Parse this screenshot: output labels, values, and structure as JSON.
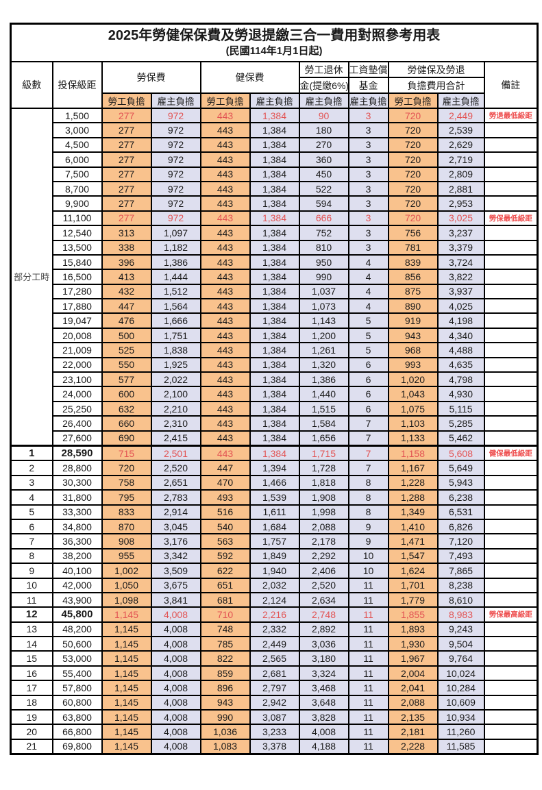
{
  "title": "2025年勞健保保費及勞退提繳三合一費用對照參考用表",
  "subtitle": "(民國114年1月1日起)",
  "header": {
    "level": "級數",
    "bracket": "投保級距",
    "labor_insurance": "勞保費",
    "health_insurance": "健保費",
    "pension_line1": "勞工退休",
    "pension_line2": "金(提繳6%)",
    "wage_fund_line1": "工資墊償",
    "wage_fund_line2": "基金",
    "total_line1": "勞健保及勞退",
    "total_line2": "負擔費用合計",
    "remark": "備註",
    "employee_share": "勞工負擔",
    "employer_share": "雇主負擔"
  },
  "part_time_label": "部分工時",
  "colors": {
    "employee_bg": "#F9C28D",
    "employer_bg": "#DEDFEF",
    "highlight_text": "#E25353",
    "remark_text": "#EE4D4D"
  },
  "rows": [
    {
      "level": "",
      "bracket": "1,500",
      "values": [
        "277",
        "972",
        "443",
        "1,384",
        "90",
        "3",
        "720",
        "2,449"
      ],
      "remark": "勞退最低級距",
      "hl": true,
      "bold": false
    },
    {
      "level": "",
      "bracket": "3,000",
      "values": [
        "277",
        "972",
        "443",
        "1,384",
        "180",
        "3",
        "720",
        "2,539"
      ],
      "remark": "",
      "hl": false,
      "bold": false
    },
    {
      "level": "",
      "bracket": "4,500",
      "values": [
        "277",
        "972",
        "443",
        "1,384",
        "270",
        "3",
        "720",
        "2,629"
      ],
      "remark": "",
      "hl": false,
      "bold": false
    },
    {
      "level": "",
      "bracket": "6,000",
      "values": [
        "277",
        "972",
        "443",
        "1,384",
        "360",
        "3",
        "720",
        "2,719"
      ],
      "remark": "",
      "hl": false,
      "bold": false
    },
    {
      "level": "",
      "bracket": "7,500",
      "values": [
        "277",
        "972",
        "443",
        "1,384",
        "450",
        "3",
        "720",
        "2,809"
      ],
      "remark": "",
      "hl": false,
      "bold": false
    },
    {
      "level": "",
      "bracket": "8,700",
      "values": [
        "277",
        "972",
        "443",
        "1,384",
        "522",
        "3",
        "720",
        "2,881"
      ],
      "remark": "",
      "hl": false,
      "bold": false
    },
    {
      "level": "",
      "bracket": "9,900",
      "values": [
        "277",
        "972",
        "443",
        "1,384",
        "594",
        "3",
        "720",
        "2,953"
      ],
      "remark": "",
      "hl": false,
      "bold": false
    },
    {
      "level": "",
      "bracket": "11,100",
      "values": [
        "277",
        "972",
        "443",
        "1,384",
        "666",
        "3",
        "720",
        "3,025"
      ],
      "remark": "勞保最低級距",
      "hl": true,
      "bold": false
    },
    {
      "level": "",
      "bracket": "12,540",
      "values": [
        "313",
        "1,097",
        "443",
        "1,384",
        "752",
        "3",
        "756",
        "3,237"
      ],
      "remark": "",
      "hl": false,
      "bold": false
    },
    {
      "level": "",
      "bracket": "13,500",
      "values": [
        "338",
        "1,182",
        "443",
        "1,384",
        "810",
        "3",
        "781",
        "3,379"
      ],
      "remark": "",
      "hl": false,
      "bold": false
    },
    {
      "level": "",
      "bracket": "15,840",
      "values": [
        "396",
        "1,386",
        "443",
        "1,384",
        "950",
        "4",
        "839",
        "3,724"
      ],
      "remark": "",
      "hl": false,
      "bold": false
    },
    {
      "level": "",
      "bracket": "16,500",
      "values": [
        "413",
        "1,444",
        "443",
        "1,384",
        "990",
        "4",
        "856",
        "3,822"
      ],
      "remark": "",
      "hl": false,
      "bold": false
    },
    {
      "level": "",
      "bracket": "17,280",
      "values": [
        "432",
        "1,512",
        "443",
        "1,384",
        "1,037",
        "4",
        "875",
        "3,937"
      ],
      "remark": "",
      "hl": false,
      "bold": false
    },
    {
      "level": "",
      "bracket": "17,880",
      "values": [
        "447",
        "1,564",
        "443",
        "1,384",
        "1,073",
        "4",
        "890",
        "4,025"
      ],
      "remark": "",
      "hl": false,
      "bold": false
    },
    {
      "level": "",
      "bracket": "19,047",
      "values": [
        "476",
        "1,666",
        "443",
        "1,384",
        "1,143",
        "5",
        "919",
        "4,198"
      ],
      "remark": "",
      "hl": false,
      "bold": false
    },
    {
      "level": "",
      "bracket": "20,008",
      "values": [
        "500",
        "1,751",
        "443",
        "1,384",
        "1,200",
        "5",
        "943",
        "4,340"
      ],
      "remark": "",
      "hl": false,
      "bold": false
    },
    {
      "level": "",
      "bracket": "21,009",
      "values": [
        "525",
        "1,838",
        "443",
        "1,384",
        "1,261",
        "5",
        "968",
        "4,488"
      ],
      "remark": "",
      "hl": false,
      "bold": false
    },
    {
      "level": "",
      "bracket": "22,000",
      "values": [
        "550",
        "1,925",
        "443",
        "1,384",
        "1,320",
        "6",
        "993",
        "4,635"
      ],
      "remark": "",
      "hl": false,
      "bold": false
    },
    {
      "level": "",
      "bracket": "23,100",
      "values": [
        "577",
        "2,022",
        "443",
        "1,384",
        "1,386",
        "6",
        "1,020",
        "4,798"
      ],
      "remark": "",
      "hl": false,
      "bold": false
    },
    {
      "level": "",
      "bracket": "24,000",
      "values": [
        "600",
        "2,100",
        "443",
        "1,384",
        "1,440",
        "6",
        "1,043",
        "4,930"
      ],
      "remark": "",
      "hl": false,
      "bold": false
    },
    {
      "level": "",
      "bracket": "25,250",
      "values": [
        "632",
        "2,210",
        "443",
        "1,384",
        "1,515",
        "6",
        "1,075",
        "5,115"
      ],
      "remark": "",
      "hl": false,
      "bold": false
    },
    {
      "level": "",
      "bracket": "26,400",
      "values": [
        "660",
        "2,310",
        "443",
        "1,384",
        "1,584",
        "7",
        "1,103",
        "5,285"
      ],
      "remark": "",
      "hl": false,
      "bold": false
    },
    {
      "level": "",
      "bracket": "27,600",
      "values": [
        "690",
        "2,415",
        "443",
        "1,384",
        "1,656",
        "7",
        "1,133",
        "5,462"
      ],
      "remark": "",
      "hl": false,
      "bold": false
    },
    {
      "level": "1",
      "bracket": "28,590",
      "values": [
        "715",
        "2,501",
        "443",
        "1,384",
        "1,715",
        "7",
        "1,158",
        "5,608"
      ],
      "remark": "健保最低級距",
      "hl": true,
      "bold": true
    },
    {
      "level": "2",
      "bracket": "28,800",
      "values": [
        "720",
        "2,520",
        "447",
        "1,394",
        "1,728",
        "7",
        "1,167",
        "5,649"
      ],
      "remark": "",
      "hl": false,
      "bold": false
    },
    {
      "level": "3",
      "bracket": "30,300",
      "values": [
        "758",
        "2,651",
        "470",
        "1,466",
        "1,818",
        "8",
        "1,228",
        "5,943"
      ],
      "remark": "",
      "hl": false,
      "bold": false
    },
    {
      "level": "4",
      "bracket": "31,800",
      "values": [
        "795",
        "2,783",
        "493",
        "1,539",
        "1,908",
        "8",
        "1,288",
        "6,238"
      ],
      "remark": "",
      "hl": false,
      "bold": false
    },
    {
      "level": "5",
      "bracket": "33,300",
      "values": [
        "833",
        "2,914",
        "516",
        "1,611",
        "1,998",
        "8",
        "1,349",
        "6,531"
      ],
      "remark": "",
      "hl": false,
      "bold": false
    },
    {
      "level": "6",
      "bracket": "34,800",
      "values": [
        "870",
        "3,045",
        "540",
        "1,684",
        "2,088",
        "9",
        "1,410",
        "6,826"
      ],
      "remark": "",
      "hl": false,
      "bold": false
    },
    {
      "level": "7",
      "bracket": "36,300",
      "values": [
        "908",
        "3,176",
        "563",
        "1,757",
        "2,178",
        "9",
        "1,471",
        "7,120"
      ],
      "remark": "",
      "hl": false,
      "bold": false
    },
    {
      "level": "8",
      "bracket": "38,200",
      "values": [
        "955",
        "3,342",
        "592",
        "1,849",
        "2,292",
        "10",
        "1,547",
        "7,493"
      ],
      "remark": "",
      "hl": false,
      "bold": false
    },
    {
      "level": "9",
      "bracket": "40,100",
      "values": [
        "1,002",
        "3,509",
        "622",
        "1,940",
        "2,406",
        "10",
        "1,624",
        "7,865"
      ],
      "remark": "",
      "hl": false,
      "bold": false
    },
    {
      "level": "10",
      "bracket": "42,000",
      "values": [
        "1,050",
        "3,675",
        "651",
        "2,032",
        "2,520",
        "11",
        "1,701",
        "8,238"
      ],
      "remark": "",
      "hl": false,
      "bold": false
    },
    {
      "level": "11",
      "bracket": "43,900",
      "values": [
        "1,098",
        "3,841",
        "681",
        "2,124",
        "2,634",
        "11",
        "1,779",
        "8,610"
      ],
      "remark": "",
      "hl": false,
      "bold": false
    },
    {
      "level": "12",
      "bracket": "45,800",
      "values": [
        "1,145",
        "4,008",
        "710",
        "2,216",
        "2,748",
        "11",
        "1,855",
        "8,983"
      ],
      "remark": "勞保最高級距",
      "hl": true,
      "bold": true
    },
    {
      "level": "13",
      "bracket": "48,200",
      "values": [
        "1,145",
        "4,008",
        "748",
        "2,332",
        "2,892",
        "11",
        "1,893",
        "9,243"
      ],
      "remark": "",
      "hl": false,
      "bold": false
    },
    {
      "level": "14",
      "bracket": "50,600",
      "values": [
        "1,145",
        "4,008",
        "785",
        "2,449",
        "3,036",
        "11",
        "1,930",
        "9,504"
      ],
      "remark": "",
      "hl": false,
      "bold": false
    },
    {
      "level": "15",
      "bracket": "53,000",
      "values": [
        "1,145",
        "4,008",
        "822",
        "2,565",
        "3,180",
        "11",
        "1,967",
        "9,764"
      ],
      "remark": "",
      "hl": false,
      "bold": false
    },
    {
      "level": "16",
      "bracket": "55,400",
      "values": [
        "1,145",
        "4,008",
        "859",
        "2,681",
        "3,324",
        "11",
        "2,004",
        "10,024"
      ],
      "remark": "",
      "hl": false,
      "bold": false
    },
    {
      "level": "17",
      "bracket": "57,800",
      "values": [
        "1,145",
        "4,008",
        "896",
        "2,797",
        "3,468",
        "11",
        "2,041",
        "10,284"
      ],
      "remark": "",
      "hl": false,
      "bold": false
    },
    {
      "level": "18",
      "bracket": "60,800",
      "values": [
        "1,145",
        "4,008",
        "943",
        "2,942",
        "3,648",
        "11",
        "2,088",
        "10,609"
      ],
      "remark": "",
      "hl": false,
      "bold": false
    },
    {
      "level": "19",
      "bracket": "63,800",
      "values": [
        "1,145",
        "4,008",
        "990",
        "3,087",
        "3,828",
        "11",
        "2,135",
        "10,934"
      ],
      "remark": "",
      "hl": false,
      "bold": false
    },
    {
      "level": "20",
      "bracket": "66,800",
      "values": [
        "1,145",
        "4,008",
        "1,036",
        "3,233",
        "4,008",
        "11",
        "2,181",
        "11,260"
      ],
      "remark": "",
      "hl": false,
      "bold": false
    },
    {
      "level": "21",
      "bracket": "69,800",
      "values": [
        "1,145",
        "4,008",
        "1,083",
        "3,378",
        "4,188",
        "11",
        "2,228",
        "11,585"
      ],
      "remark": "",
      "hl": false,
      "bold": false
    }
  ]
}
